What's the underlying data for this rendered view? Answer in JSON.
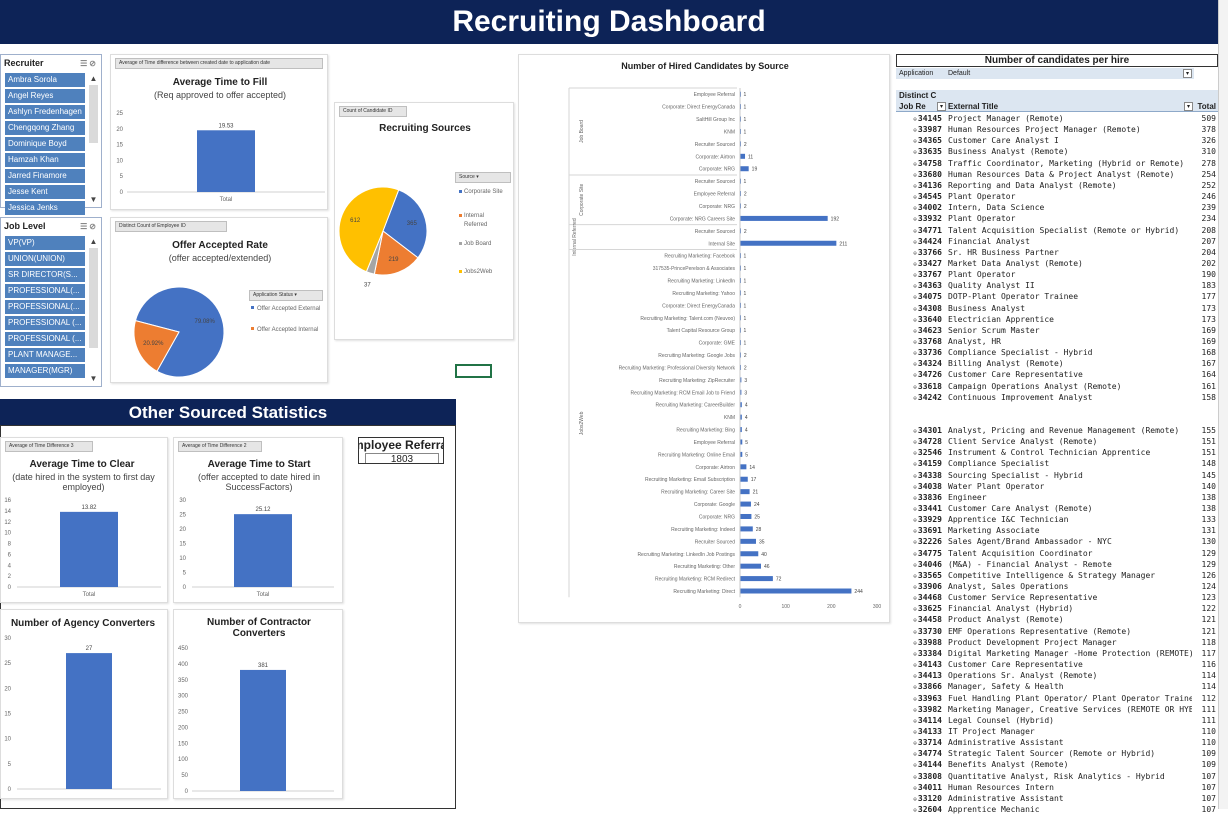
{
  "dashboard": {
    "title": "Recruiting Dashboard"
  },
  "recruiter_slicer": {
    "title": "Recruiter",
    "items": [
      "Ambra Sorola",
      "Angel Reyes",
      "Ashlyn Fredenhagen",
      "Chengqong Zhang",
      "Dominique Boyd",
      "Hamzah Khan",
      "Jarred Finamore",
      "Jesse Kent",
      "Jessica Jenks"
    ]
  },
  "joblevel_slicer": {
    "title": "Job Level",
    "items": [
      "VP(VP)",
      "UNION(UNION)",
      "SR DIRECTOR(S...",
      "PROFESSIONAL(...",
      "PROFESSIONAL(...",
      "PROFESSIONAL (...",
      "PROFESSIONAL (...",
      "PLANT MANAGE...",
      "MANAGER(MGR)"
    ]
  },
  "time_to_fill": {
    "pill": "Average of Time difference between created date to application date",
    "title": "Average Time to Fill",
    "subtitle": "(Req approved to offer accepted)",
    "chart_data": {
      "type": "bar",
      "categories": [
        "Total"
      ],
      "values": [
        19.53
      ],
      "ylim": [
        0,
        25
      ],
      "yticks": [
        0,
        5,
        10,
        15,
        20,
        25
      ]
    }
  },
  "offer_rate": {
    "pill": "Distinct Count of Employee ID",
    "title": "Offer Accepted Rate",
    "subtitle": "(offer accepted/extended)",
    "legend_pill": "Application Status",
    "chart_data": {
      "type": "pie",
      "labels": [
        "Offer Accepted External",
        "Offer Accepted Internal"
      ],
      "values": [
        79.08,
        20.92
      ],
      "value_labels": [
        "79.08%",
        "20.92%"
      ],
      "colors": [
        "#4472c4",
        "#ed7d31"
      ]
    }
  },
  "sources": {
    "pill": "Count of Candidate ID",
    "title": "Recruiting Sources",
    "legend_pill": "Source",
    "chart_data": {
      "type": "pie",
      "labels": [
        "Corporate Site",
        "Internal Referred",
        "Job Board",
        "Jobs2Web"
      ],
      "values": [
        365,
        219,
        37,
        612
      ],
      "colors": [
        "#4472c4",
        "#ed7d31",
        "#a5a5a5",
        "#ffc000"
      ]
    }
  },
  "hired": {
    "title": "Number of Hired Candidates by Source",
    "groups": [
      "Job Board",
      "Corporate Site",
      "Internal Referred",
      "Jobs2Web"
    ],
    "chart_data": {
      "type": "bar",
      "orientation": "horizontal",
      "categories": [
        "Employee Referral",
        "Corporate: Direct EnergyCanada",
        "SaltHill Group Inc",
        "KNM",
        "Recruiter Sourced",
        "Corporate: Airtron",
        "Corporate: NRG",
        "Recruiter Sourced",
        "Employee Referral",
        "Corporate: NRG",
        "Corporate: NRG Careers Site",
        "Recruiter Sourced",
        "Internal Site",
        "Recruiting Marketing: Facebook",
        "317535-PrincePerelson & Associates",
        "Recruiting Marketing: LinkedIn",
        "Recruiting Marketing: Yahoo",
        "Corporate: Direct EnergyCanada",
        "Recruiting Marketing: Talent.com (Neuvoo)",
        "Talent Capital Resource Group",
        "Corporate: GME",
        "Recruiting Marketing: Google Jobs",
        "Recruiting Marketing: Professional Diversity Network",
        "Recruiting Marketing: ZipRecruiter",
        "Recruiting Marketing: RCM Email Job to Friend",
        "Recruiting Marketing: CareerBuilder",
        "KNM",
        "Recruiting Marketing: Bing",
        "Employee Referral",
        "Recruiting Marketing: Online Email",
        "Corporate: Airtron",
        "Recruiting Marketing: Email Subscription",
        "Recruiting Marketing: Career Site",
        "Corporate: Google",
        "Corporate: NRG",
        "Recruiting Marketing: Indeed",
        "Recruiter Sourced",
        "Recruiting Marketing: LinkedIn Job Postings",
        "Recruiting Marketing: Other",
        "Recruiting Marketing: RCM Redirect",
        "Recruiting Marketing: Direct"
      ],
      "values": [
        1,
        1,
        1,
        1,
        2,
        11,
        19,
        1,
        2,
        2,
        192,
        2,
        211,
        1,
        1,
        1,
        1,
        1,
        1,
        1,
        1,
        2,
        2,
        3,
        3,
        4,
        4,
        4,
        5,
        5,
        14,
        17,
        21,
        24,
        25,
        28,
        35,
        40,
        46,
        72,
        244
      ],
      "group_sizes": [
        7,
        4,
        2,
        28
      ],
      "xlim": [
        0,
        300
      ],
      "xticks": [
        0,
        100,
        200,
        300
      ]
    }
  },
  "other": {
    "title": "Other Sourced Statistics",
    "referral_label": "Employee Referral",
    "referral_value": "1803",
    "clear": {
      "pill": "Average of Time Difference 3",
      "title": "Average Time to Clear",
      "subtitle": "(date hired in the system to first day employed)",
      "chart_data": {
        "type": "bar",
        "categories": [
          "Total"
        ],
        "values": [
          13.82
        ],
        "ylim": [
          0,
          16
        ],
        "yticks": [
          0,
          2,
          4,
          6,
          8,
          10,
          12,
          14,
          16
        ]
      }
    },
    "start": {
      "pill": "Average of Time Difference 2",
      "title": "Average Time to Start",
      "subtitle": "(offer accepted to date hired in SuccessFactors)",
      "chart_data": {
        "type": "bar",
        "categories": [
          "Total"
        ],
        "values": [
          25.12
        ],
        "ylim": [
          0,
          30
        ],
        "yticks": [
          0,
          5,
          10,
          15,
          20,
          25,
          30
        ]
      }
    },
    "agency": {
      "title": "Number of Agency Converters",
      "chart_data": {
        "type": "bar",
        "categories": [
          ""
        ],
        "values": [
          27
        ],
        "ylim": [
          0,
          30
        ],
        "yticks": [
          0,
          5,
          10,
          15,
          20,
          25,
          30
        ]
      }
    },
    "contractor": {
      "title": "Number of Contractor Converters",
      "chart_data": {
        "type": "bar",
        "categories": [
          ""
        ],
        "values": [
          381
        ],
        "ylim": [
          0,
          450
        ],
        "yticks": [
          0,
          50,
          100,
          150,
          200,
          250,
          300,
          350,
          400,
          450
        ]
      }
    }
  },
  "table": {
    "title": "Number of candidates per hire",
    "filter_label": "Application",
    "filter_value": "Default",
    "distinct_label": "Distinct C",
    "col_job": "Job Re",
    "col_title": "External Title",
    "col_total": "Total",
    "rows": [
      [
        "34145",
        "Project Manager (Remote)",
        "509"
      ],
      [
        "33987",
        "Human Resources Project Manager (Remote)",
        "378"
      ],
      [
        "34365",
        "Customer Care Analyst I",
        "326"
      ],
      [
        "33635",
        "Business Analyst (Remote)",
        "310"
      ],
      [
        "34758",
        "Traffic Coordinator, Marketing (Hybrid or Remote)",
        "278"
      ],
      [
        "33680",
        "Human Resources Data & Project Analyst (Remote)",
        "254"
      ],
      [
        "34136",
        "Reporting and Data Analyst (Remote)",
        "252"
      ],
      [
        "34545",
        "Plant Operator",
        "246"
      ],
      [
        "34002",
        "Intern, Data Science",
        "239"
      ],
      [
        "33932",
        "Plant Operator",
        "234"
      ],
      [
        "34771",
        "Talent Acquisition Specialist (Remote or Hybrid)",
        "208"
      ],
      [
        "34424",
        "Financial Analyst",
        "207"
      ],
      [
        "33766",
        "Sr. HR Business Partner",
        "204"
      ],
      [
        "33427",
        "Market Data Analyst (Remote)",
        "202"
      ],
      [
        "33767",
        "Plant Operator",
        "190"
      ],
      [
        "34363",
        "Quality Analyst II",
        "183"
      ],
      [
        "34075",
        "DOTP-Plant Operator Trainee",
        "177"
      ],
      [
        "34308",
        "Business Analyst",
        "173"
      ],
      [
        "33640",
        "Electrician Apprentice",
        "173"
      ],
      [
        "34623",
        "Senior Scrum Master",
        "169"
      ],
      [
        "33768",
        "Analyst, HR",
        "169"
      ],
      [
        "33736",
        "Compliance Specialist - Hybrid",
        "168"
      ],
      [
        "34324",
        "Billing Analyst (Remote)",
        "167"
      ],
      [
        "34726",
        "Customer Care Representative",
        "164"
      ],
      [
        "33618",
        "Campaign Operations Analyst (Remote)",
        "161"
      ],
      [
        "34242",
        "Continuous Improvement Analyst",
        "158"
      ],
      [
        "34301",
        "Analyst, Pricing and Revenue Management (Remote)",
        "155"
      ],
      [
        "34728",
        "Client Service Analyst (Remote)",
        "151"
      ],
      [
        "32546",
        "Instrument & Control Technician Apprentice",
        "151"
      ],
      [
        "34159",
        "Compliance Specialist",
        "148"
      ],
      [
        "34338",
        "Sourcing Specialist - Hybrid",
        "145"
      ],
      [
        "34038",
        "Water Plant Operator",
        "140"
      ],
      [
        "33836",
        "Engineer",
        "138"
      ],
      [
        "33441",
        "Customer Care Analyst (Remote)",
        "138"
      ],
      [
        "33929",
        "Apprentice I&C Technician",
        "133"
      ],
      [
        "33691",
        "Marketing Associate",
        "131"
      ],
      [
        "32226",
        "Sales Agent/Brand Ambassador - NYC",
        "130"
      ],
      [
        "34775",
        "Talent Acquisition Coordinator",
        "129"
      ],
      [
        "34046",
        "(M&A) - Financial Analyst - Remote",
        "129"
      ],
      [
        "33565",
        "Competitive Intelligence & Strategy Manager",
        "126"
      ],
      [
        "33906",
        "Analyst, Sales Operations",
        "124"
      ],
      [
        "34468",
        "Customer Service Representative",
        "123"
      ],
      [
        "33625",
        "Financial Analyst (Hybrid)",
        "122"
      ],
      [
        "34458",
        "Product Analyst (Remote)",
        "121"
      ],
      [
        "33730",
        "EMF Operations Representative (Remote)",
        "121"
      ],
      [
        "33988",
        "Product Development Project Manager",
        "118"
      ],
      [
        "33384",
        "Digital Marketing Manager -Home Protection (REMOTE)",
        "117"
      ],
      [
        "34143",
        "Customer Care Representative",
        "116"
      ],
      [
        "34413",
        "Operations Sr. Analyst (Remote)",
        "114"
      ],
      [
        "33866",
        "Manager, Safety & Health",
        "114"
      ],
      [
        "33963",
        "Fuel Handling Plant Operator/ Plant Operator Trainee",
        "112"
      ],
      [
        "33982",
        "Marketing Manager, Creative Services (REMOTE OR HYBRID)",
        "111"
      ],
      [
        "34114",
        "Legal Counsel (Hybrid)",
        "111"
      ],
      [
        "34133",
        "IT Project Manager",
        "110"
      ],
      [
        "33714",
        "Administrative Assistant",
        "110"
      ],
      [
        "34774",
        "Strategic Talent Sourcer (Remote or Hybrid)",
        "109"
      ],
      [
        "34144",
        "Benefits Analyst (Remote)",
        "109"
      ],
      [
        "33808",
        "Quantitative Analyst, Risk Analytics - Hybrid",
        "107"
      ],
      [
        "34011",
        "Human Resources Intern",
        "107"
      ],
      [
        "33120",
        "Administrative Assistant",
        "107"
      ],
      [
        "32604",
        "Apprentice Mechanic",
        "107"
      ]
    ]
  }
}
